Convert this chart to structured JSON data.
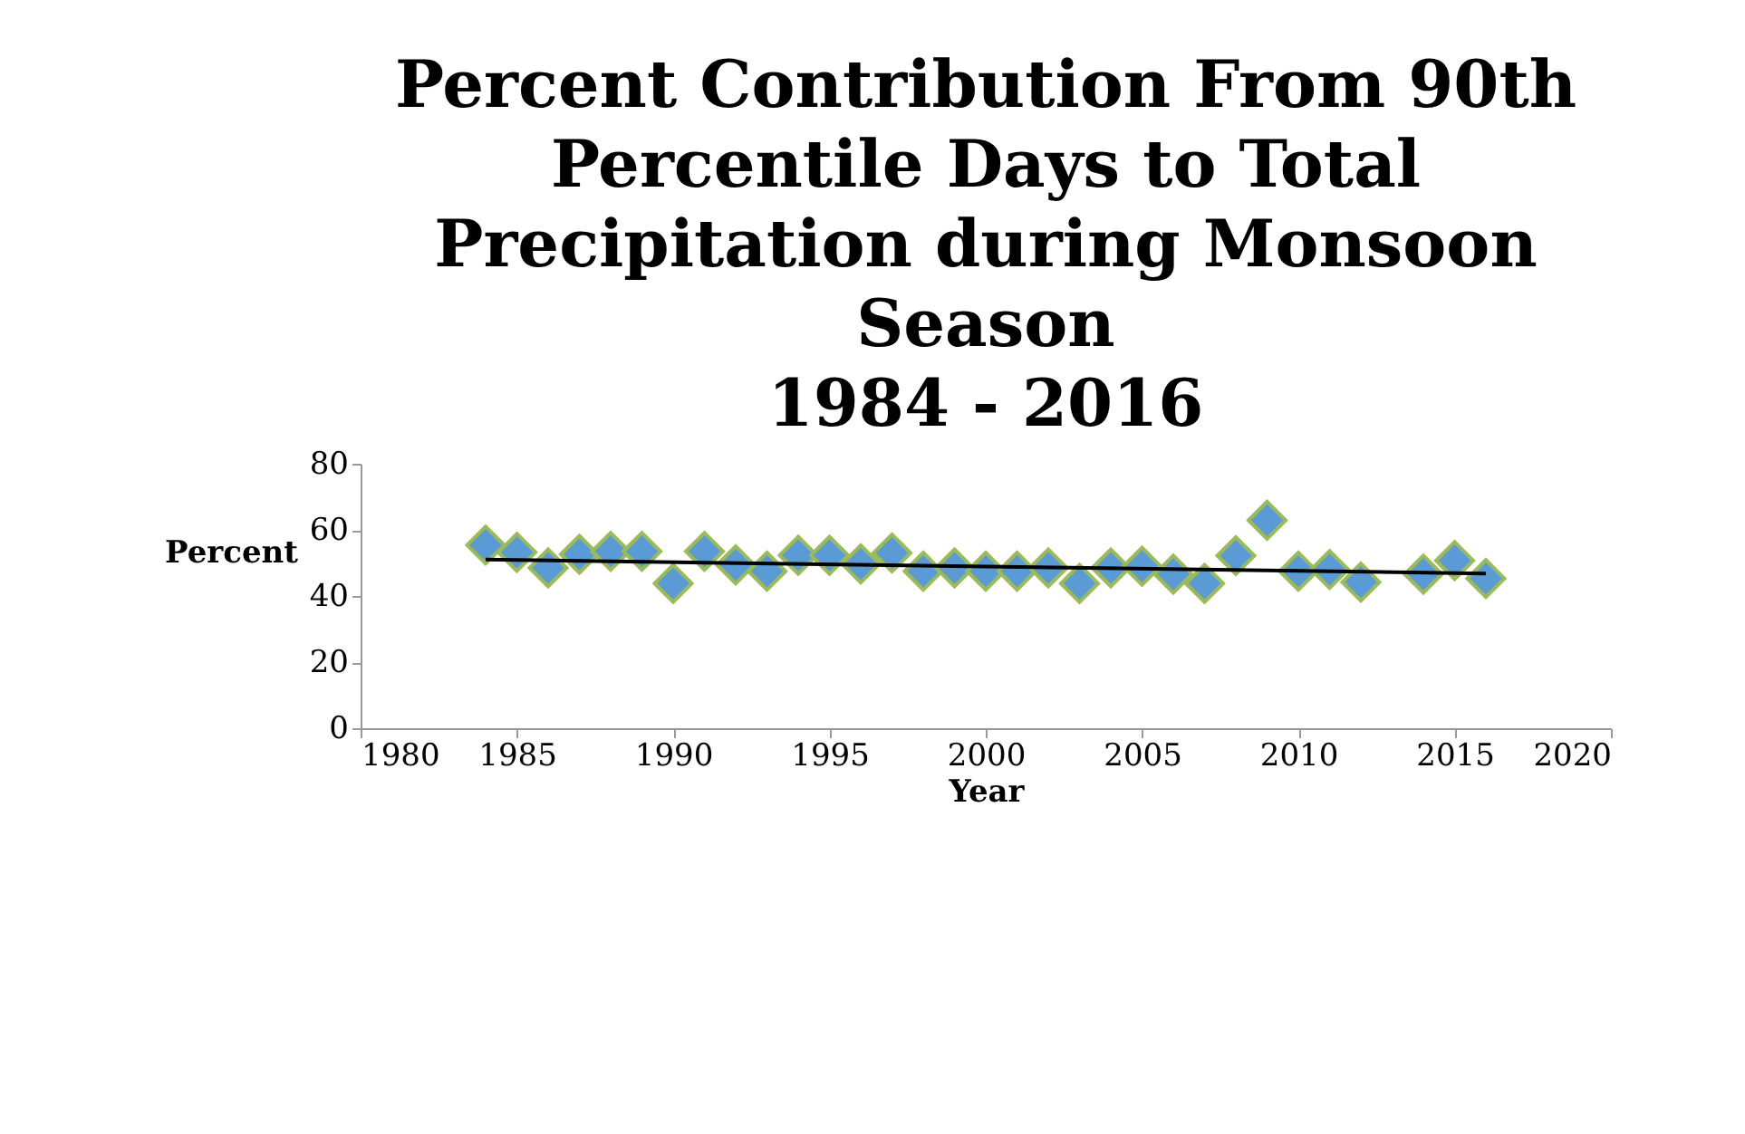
{
  "chart_data": {
    "type": "scatter",
    "title": [
      "Percent Contribution From 90th",
      "Percentile Days to Total",
      "Precipitation during Monsoon",
      "Season",
      "1984 - 2016"
    ],
    "xlabel": "Year",
    "ylabel": "Percent",
    "xlim": [
      1980,
      2020
    ],
    "xticks": [
      1980,
      1985,
      1990,
      1995,
      2000,
      2005,
      2010,
      2015,
      2020
    ],
    "ylim": [
      0,
      80
    ],
    "yticks": [
      0,
      20,
      40,
      60,
      80
    ],
    "grid": false,
    "series": [
      {
        "marker": "diamond",
        "color": "#5b9bd5",
        "x": [
          1984,
          1985,
          1986,
          1987,
          1988,
          1989,
          1990,
          1991,
          1992,
          1993,
          1994,
          1995,
          1996,
          1997,
          1998,
          1999,
          2000,
          2001,
          2002,
          2003,
          2004,
          2005,
          2006,
          2007,
          2008,
          2009,
          2010,
          2011,
          2012,
          2014,
          2015,
          2016
        ],
        "values": [
          55.4,
          53.2,
          48.5,
          52.6,
          53.5,
          53.5,
          43.8,
          53.5,
          49.4,
          47.5,
          52.3,
          52.3,
          49.7,
          53.0,
          47.5,
          48.5,
          47.5,
          47.5,
          48.5,
          43.8,
          48.5,
          49,
          46.6,
          43.8,
          52.2,
          62.9,
          47.5,
          48,
          44.2,
          46.6,
          50.7,
          45.3
        ]
      },
      {
        "type": "line",
        "marker": "none",
        "color": "#000000",
        "x": [
          1984,
          2016
        ],
        "values": [
          51.0,
          46.8
        ]
      }
    ]
  }
}
